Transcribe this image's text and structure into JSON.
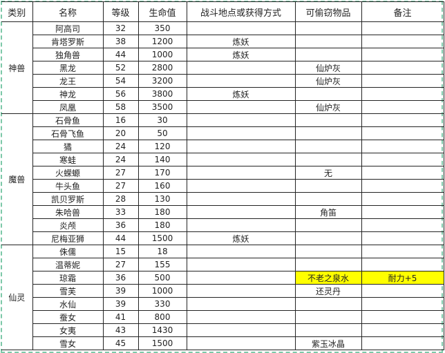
{
  "headers": [
    "类别",
    "名称",
    "等级",
    "生命值",
    "战斗地点或获得方式",
    "可偷窃物品",
    "备注"
  ],
  "highlight_color": "#ffff00",
  "groups": [
    {
      "category": "神兽",
      "rows": [
        {
          "name": "阿高司",
          "level": "32",
          "hp": "350",
          "source": "",
          "steal": "",
          "note": ""
        },
        {
          "name": "肯塔罗斯",
          "level": "38",
          "hp": "1200",
          "source": "炼妖",
          "steal": "",
          "note": ""
        },
        {
          "name": "独角兽",
          "level": "44",
          "hp": "1000",
          "source": "炼妖",
          "steal": "",
          "note": ""
        },
        {
          "name": "黑龙",
          "level": "52",
          "hp": "2800",
          "source": "",
          "steal": "仙炉灰",
          "note": ""
        },
        {
          "name": "龙王",
          "level": "54",
          "hp": "3200",
          "source": "",
          "steal": "仙炉灰",
          "note": ""
        },
        {
          "name": "神龙",
          "level": "56",
          "hp": "3800",
          "source": "炼妖",
          "steal": "",
          "note": ""
        },
        {
          "name": "凤凰",
          "level": "58",
          "hp": "3500",
          "source": "",
          "steal": "仙炉灰",
          "note": ""
        }
      ]
    },
    {
      "category": "魔兽",
      "rows": [
        {
          "name": "石骨鱼",
          "level": "16",
          "hp": "30",
          "source": "",
          "steal": "",
          "note": ""
        },
        {
          "name": "石骨飞鱼",
          "level": "20",
          "hp": "50",
          "source": "",
          "steal": "",
          "note": ""
        },
        {
          "name": "獝",
          "level": "24",
          "hp": "120",
          "source": "",
          "steal": "",
          "note": ""
        },
        {
          "name": "寒蛙",
          "level": "24",
          "hp": "140",
          "source": "",
          "steal": "",
          "note": ""
        },
        {
          "name": "火蝾螈",
          "level": "27",
          "hp": "170",
          "source": "",
          "steal": "无",
          "note": ""
        },
        {
          "name": "牛头鱼",
          "level": "27",
          "hp": "160",
          "source": "",
          "steal": "",
          "note": ""
        },
        {
          "name": "凯贝罗斯",
          "level": "28",
          "hp": "130",
          "source": "",
          "steal": "",
          "note": ""
        },
        {
          "name": "朱哈兽",
          "level": "33",
          "hp": "180",
          "source": "",
          "steal": "角笛",
          "note": ""
        },
        {
          "name": "炎颅",
          "level": "36",
          "hp": "180",
          "source": "",
          "steal": "",
          "note": ""
        },
        {
          "name": "尼梅亚狮",
          "level": "44",
          "hp": "1500",
          "source": "炼妖",
          "steal": "",
          "note": ""
        }
      ]
    },
    {
      "category": "仙灵",
      "rows": [
        {
          "name": "侏儒",
          "level": "15",
          "hp": "18",
          "source": "",
          "steal": "",
          "note": ""
        },
        {
          "name": "温蒂妮",
          "level": "27",
          "hp": "155",
          "source": "",
          "steal": "",
          "note": ""
        },
        {
          "name": "琼霜",
          "level": "36",
          "hp": "500",
          "source": "",
          "steal": "不老之泉水",
          "note": "耐力+5",
          "highlight": true
        },
        {
          "name": "雪芙",
          "level": "39",
          "hp": "1000",
          "source": "",
          "steal": "还灵丹",
          "note": ""
        },
        {
          "name": "水仙",
          "level": "39",
          "hp": "330",
          "source": "",
          "steal": "",
          "note": ""
        },
        {
          "name": "蚕女",
          "level": "41",
          "hp": "800",
          "source": "",
          "steal": "",
          "note": ""
        },
        {
          "name": "女夷",
          "level": "43",
          "hp": "1430",
          "source": "",
          "steal": "",
          "note": ""
        },
        {
          "name": "雪女",
          "level": "45",
          "hp": "1500",
          "source": "",
          "steal": "紫玉冰晶",
          "note": ""
        }
      ]
    }
  ]
}
